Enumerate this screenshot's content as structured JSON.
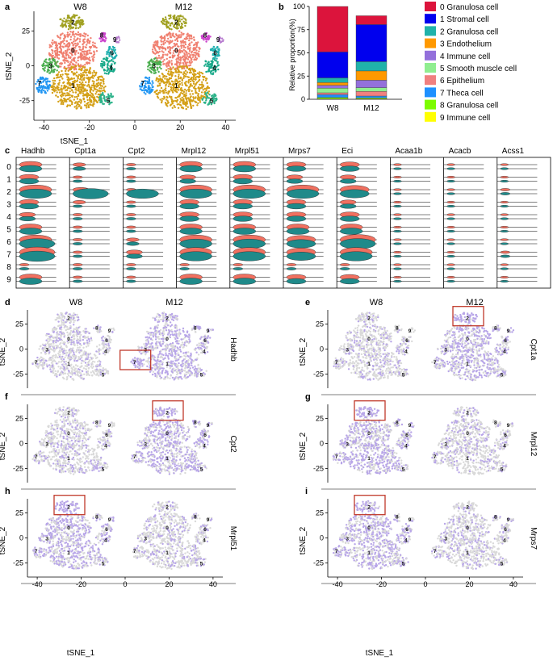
{
  "panels": {
    "a": {
      "letter": "a",
      "groups": [
        "W8",
        "M12"
      ],
      "xlabel": "tSNE_1",
      "ylabel": "tSNE_2",
      "xticks": [
        "-40",
        "-20",
        "0",
        "20",
        "40"
      ],
      "yticks": [
        "25",
        "0",
        "-25"
      ]
    },
    "b": {
      "letter": "b",
      "ylabel": "Relative proportion(%)"
    },
    "c": {
      "letter": "c"
    },
    "d": {
      "letter": "d",
      "gene": "Hadhb",
      "groups": [
        "W8",
        "M12"
      ],
      "box_on": "M12",
      "box_cluster": "7"
    },
    "e": {
      "letter": "e",
      "gene": "Cpt1a",
      "groups": [
        "W8",
        "M12"
      ],
      "box_on": "M12",
      "box_cluster": "2"
    },
    "f": {
      "letter": "f",
      "gene": "Cpt2",
      "groups": [
        "",
        ""
      ],
      "box_on": "M12",
      "box_cluster": "2"
    },
    "g": {
      "letter": "g",
      "gene": "Mrpl12",
      "groups": [
        "",
        ""
      ],
      "box_on": "W8",
      "box_cluster": "2"
    },
    "h": {
      "letter": "h",
      "gene": "Mrpl51",
      "groups": [
        "",
        ""
      ],
      "box_on": "W8",
      "box_cluster": "2"
    },
    "i": {
      "letter": "i",
      "gene": "Mrps7",
      "groups": [
        "",
        ""
      ],
      "box_on": "W8",
      "box_cluster": "2"
    }
  },
  "tsne_axis": {
    "xlabel": "tSNE_1",
    "ylabel": "tSNE_2",
    "xticks": [
      "-40",
      "-20",
      "0",
      "20",
      "40"
    ],
    "yticks": [
      "25",
      "0",
      "-25"
    ]
  },
  "cluster_labels": [
    "0",
    "1",
    "2",
    "3",
    "4",
    "5",
    "6",
    "7",
    "8",
    "9"
  ],
  "cluster_colors": [
    "#f08070",
    "#d4a017",
    "#a0a020",
    "#4caf50",
    "#1aaa8a",
    "#2db38a",
    "#20b0b0",
    "#2196f3",
    "#cc44cc",
    "#b87fd0"
  ],
  "legend": {
    "entries": [
      {
        "label": "0 Granulosa cell",
        "color": "#dc143c"
      },
      {
        "label": "1 Stromal cell",
        "color": "#0000ee"
      },
      {
        "label": "2 Granulosa cell",
        "color": "#20b2aa"
      },
      {
        "label": "3 Endothelium",
        "color": "#ff9900"
      },
      {
        "label": "4 Immune cell",
        "color": "#9370db"
      },
      {
        "label": "5 Smooth muscle cell",
        "color": "#90ee90"
      },
      {
        "label": "6 Epithelium",
        "color": "#f08080"
      },
      {
        "label": "7 Theca cell",
        "color": "#1e90ff"
      },
      {
        "label": "8 Granulosa cell",
        "color": "#7cfc00"
      },
      {
        "label": "9 Immune cell",
        "color": "#ffff00"
      }
    ]
  },
  "chart_data": [
    {
      "type": "bar",
      "title": "",
      "xlabel": "",
      "ylabel": "Relative proportion(%)",
      "ylim": [
        0,
        100
      ],
      "yticks": [
        "0",
        "25",
        "50",
        "75",
        "100"
      ],
      "categories": [
        "W8",
        "M12"
      ],
      "stacked": true,
      "series": [
        {
          "name": "9 Immune cell",
          "values": [
            0.5,
            0.5
          ]
        },
        {
          "name": "8 Granulosa cell",
          "values": [
            1.5,
            1.0
          ]
        },
        {
          "name": "7 Theca cell",
          "values": [
            3,
            2
          ]
        },
        {
          "name": "6 Epithelium",
          "values": [
            2,
            5
          ]
        },
        {
          "name": "5 Smooth muscle cell",
          "values": [
            5,
            4
          ]
        },
        {
          "name": "4 Immune cell",
          "values": [
            3,
            8
          ]
        },
        {
          "name": "3 Endothelium",
          "values": [
            3,
            10
          ]
        },
        {
          "name": "2 Granulosa cell",
          "values": [
            5,
            10
          ]
        },
        {
          "name": "1 Stromal cell",
          "values": [
            28,
            40
          ]
        },
        {
          "name": "0 Granulosa cell",
          "values": [
            49,
            9.5
          ]
        }
      ]
    },
    {
      "type": "violin",
      "title": "",
      "genes": [
        "Hadhb",
        "Cpt1a",
        "Cpt2",
        "Mrpl12",
        "Mrpl51",
        "Mrps7",
        "Eci",
        "Acaa1b",
        "Acacb",
        "Acss1"
      ],
      "clusters": [
        "0",
        "1",
        "2",
        "3",
        "4",
        "5",
        "6",
        "7",
        "8",
        "9"
      ],
      "groups": [
        "W8",
        "M12"
      ],
      "group_colors": [
        "#f07060",
        "#1f8a8a"
      ],
      "relative_expression": {
        "Hadhb": [
          [
            0.5,
            0.5
          ],
          [
            0.4,
            0.4
          ],
          [
            0.8,
            0.8
          ],
          [
            0.4,
            0.4
          ],
          [
            0.3,
            0.3
          ],
          [
            0.5,
            0.5
          ],
          [
            0.8,
            0.9
          ],
          [
            0.9,
            0.9
          ],
          [
            0.1,
            0.1
          ],
          [
            0.5,
            0.5
          ]
        ],
        "Cpt1a": [
          [
            0.2,
            0.2
          ],
          [
            0.1,
            0.1
          ],
          [
            0.3,
            0.9
          ],
          [
            0.2,
            0.1
          ],
          [
            0.1,
            0.1
          ],
          [
            0.1,
            0.1
          ],
          [
            0.1,
            0.1
          ],
          [
            0.1,
            0.1
          ],
          [
            0.1,
            0.1
          ],
          [
            0.1,
            0.1
          ]
        ],
        "Cpt2": [
          [
            0.1,
            0.1
          ],
          [
            0.1,
            0.1
          ],
          [
            0.1,
            0.8
          ],
          [
            0.1,
            0.1
          ],
          [
            0.1,
            0.1
          ],
          [
            0.1,
            0.1
          ],
          [
            0.2,
            0.2
          ],
          [
            0.3,
            0.3
          ],
          [
            0.1,
            0.1
          ],
          [
            0.1,
            0.1
          ]
        ],
        "Mrpl12": [
          [
            0.5,
            0.5
          ],
          [
            0.3,
            0.3
          ],
          [
            0.8,
            0.8
          ],
          [
            0.4,
            0.4
          ],
          [
            0.4,
            0.4
          ],
          [
            0.5,
            0.5
          ],
          [
            0.8,
            0.8
          ],
          [
            0.8,
            0.8
          ],
          [
            0.1,
            0.1
          ],
          [
            0.5,
            0.5
          ]
        ],
        "Mrpl51": [
          [
            0.5,
            0.5
          ],
          [
            0.4,
            0.4
          ],
          [
            0.8,
            0.8
          ],
          [
            0.4,
            0.4
          ],
          [
            0.4,
            0.4
          ],
          [
            0.5,
            0.5
          ],
          [
            0.8,
            0.8
          ],
          [
            0.8,
            0.8
          ],
          [
            0.1,
            0.1
          ],
          [
            0.5,
            0.5
          ]
        ],
        "Mrps7": [
          [
            0.4,
            0.4
          ],
          [
            0.3,
            0.3
          ],
          [
            0.8,
            0.8
          ],
          [
            0.4,
            0.4
          ],
          [
            0.4,
            0.4
          ],
          [
            0.5,
            0.5
          ],
          [
            0.7,
            0.7
          ],
          [
            0.7,
            0.7
          ],
          [
            0.1,
            0.1
          ],
          [
            0.4,
            0.4
          ]
        ],
        "Eci": [
          [
            0.4,
            0.4
          ],
          [
            0.3,
            0.3
          ],
          [
            0.7,
            0.7
          ],
          [
            0.3,
            0.3
          ],
          [
            0.4,
            0.4
          ],
          [
            0.5,
            0.5
          ],
          [
            0.9,
            0.9
          ],
          [
            0.8,
            0.8
          ],
          [
            0.1,
            0.1
          ],
          [
            0.4,
            0.4
          ]
        ],
        "Acaa1b": [
          [
            0.05,
            0.05
          ],
          [
            0.05,
            0.05
          ],
          [
            0.05,
            0.05
          ],
          [
            0.05,
            0.05
          ],
          [
            0.05,
            0.05
          ],
          [
            0.05,
            0.05
          ],
          [
            0.05,
            0.05
          ],
          [
            0.05,
            0.05
          ],
          [
            0.05,
            0.05
          ],
          [
            0.05,
            0.05
          ]
        ],
        "Acacb": [
          [
            0.05,
            0.05
          ],
          [
            0.05,
            0.05
          ],
          [
            0.05,
            0.05
          ],
          [
            0.05,
            0.05
          ],
          [
            0.05,
            0.05
          ],
          [
            0.05,
            0.05
          ],
          [
            0.05,
            0.05
          ],
          [
            0.05,
            0.05
          ],
          [
            0.05,
            0.05
          ],
          [
            0.05,
            0.05
          ]
        ],
        "Acss1": [
          [
            0.05,
            0.05
          ],
          [
            0.05,
            0.05
          ],
          [
            0.1,
            0.1
          ],
          [
            0.05,
            0.05
          ],
          [
            0.05,
            0.05
          ],
          [
            0.05,
            0.05
          ],
          [
            0.05,
            0.05
          ],
          [
            0.1,
            0.1
          ],
          [
            0.05,
            0.05
          ],
          [
            0.05,
            0.05
          ]
        ]
      }
    }
  ]
}
